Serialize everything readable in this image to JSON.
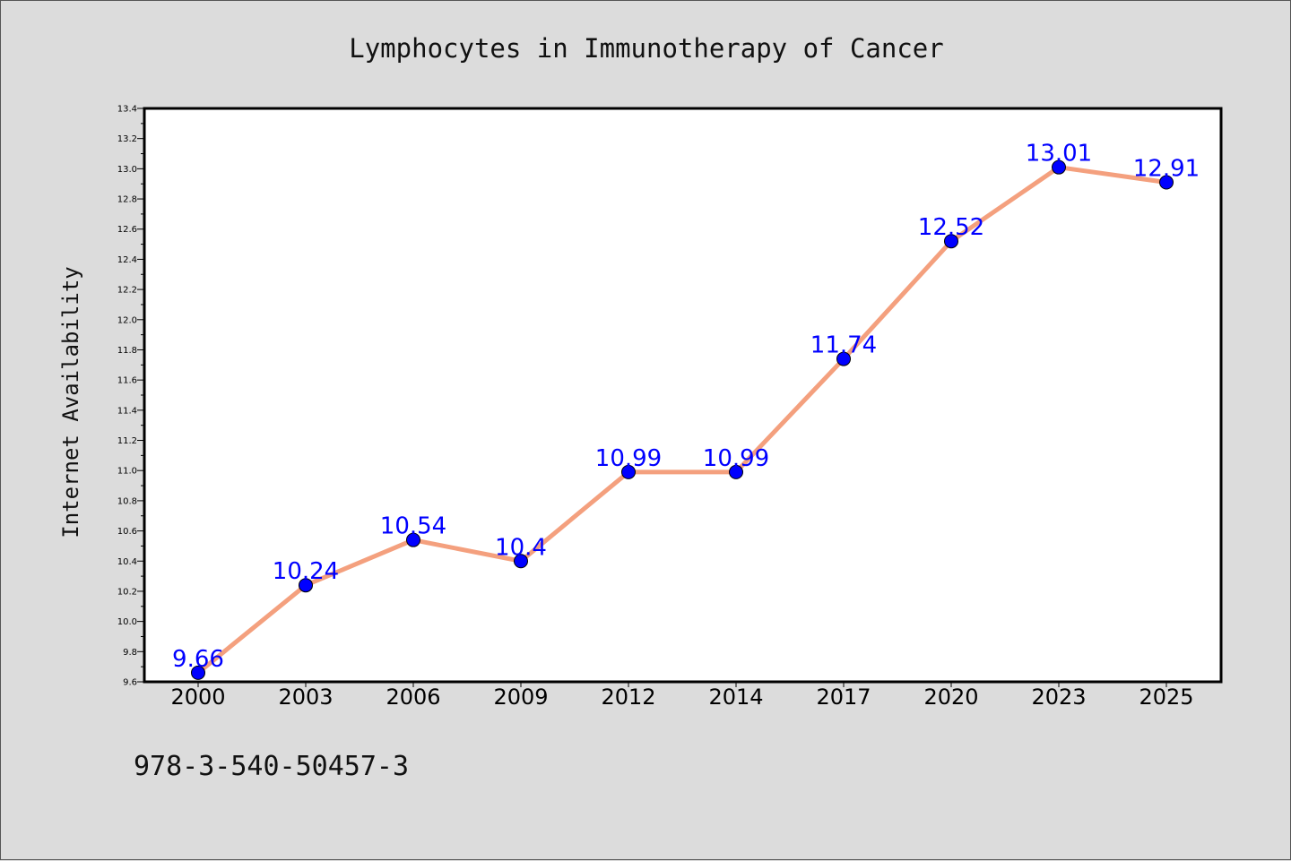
{
  "chart_data": {
    "type": "line",
    "title": "Lymphocytes in Immunotherapy of Cancer",
    "xlabel": "",
    "ylabel": "Internet Availability",
    "categories": [
      "2000",
      "2003",
      "2006",
      "2009",
      "2012",
      "2014",
      "2017",
      "2020",
      "2023",
      "2025"
    ],
    "series": [
      {
        "values": [
          9.66,
          10.24,
          10.54,
          10.4,
          10.99,
          10.99,
          11.74,
          12.52,
          13.01,
          12.91
        ],
        "labels": [
          "9.66",
          "10.24",
          "10.54",
          "10.4",
          "10.99",
          "10.99",
          "11.74",
          "12.52",
          "13.01",
          "12.91"
        ],
        "line_color": "#f4a07e",
        "marker_color": "#0000ff"
      }
    ],
    "ylim": [
      9.6,
      13.4
    ],
    "yticks": [
      "9.6",
      "9.8",
      "10.0",
      "10.2",
      "10.4",
      "10.6",
      "10.8",
      "11.0",
      "11.2",
      "11.4",
      "11.6",
      "11.8",
      "12.0",
      "12.2",
      "12.4",
      "12.6",
      "12.8",
      "13.0",
      "13.2",
      "13.4"
    ],
    "grid": false,
    "legend": "none",
    "plot_background": "#ffffff",
    "figure_background": "#dcdcdc"
  },
  "footer": {
    "identifier": "978-3-540-50457-3"
  }
}
